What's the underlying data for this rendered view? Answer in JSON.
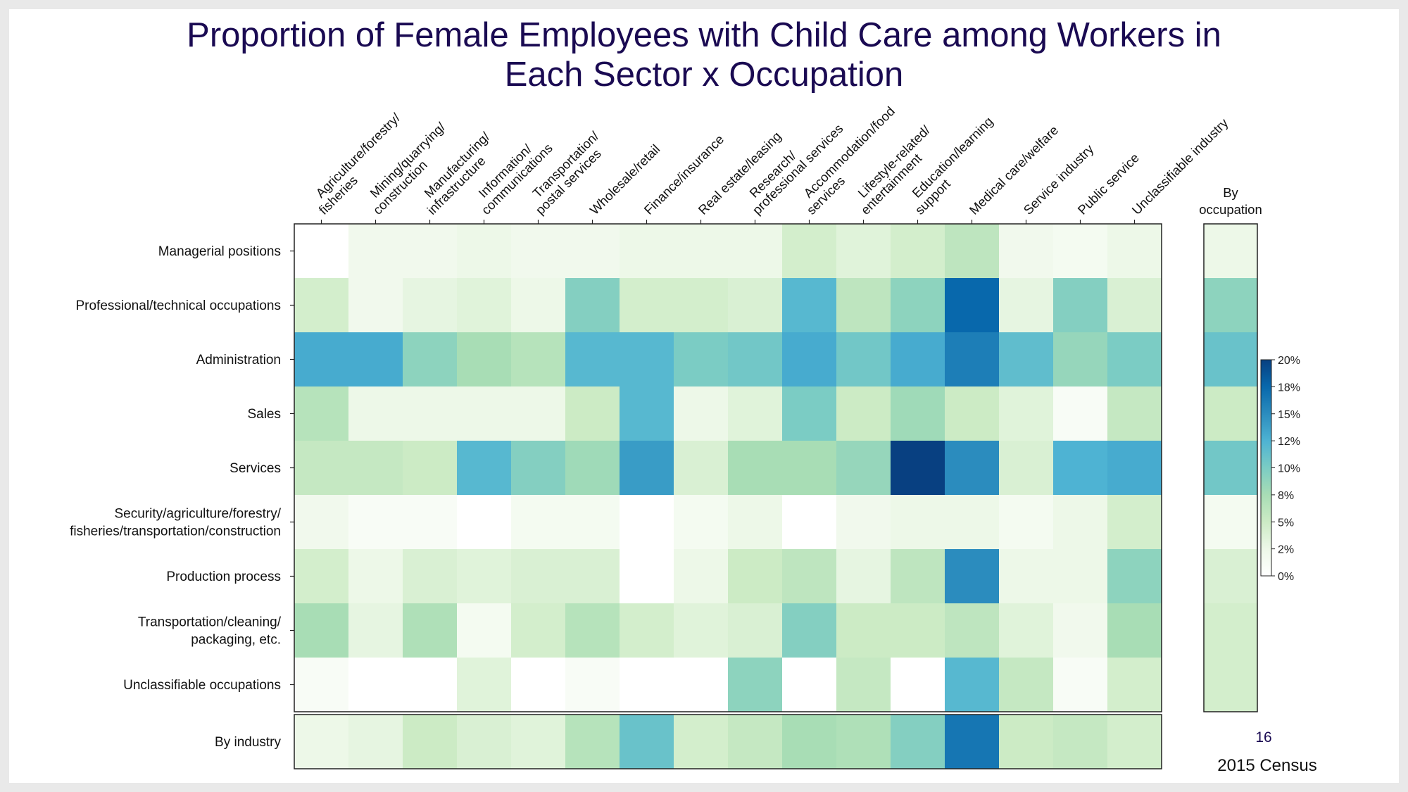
{
  "title_lines": [
    "Proportion of Female Employees with Child Care among Workers in",
    "Each Sector x Occupation"
  ],
  "page_number": "16",
  "footer_text": "2015 Census",
  "chart_data": {
    "type": "heatmap",
    "title": "Proportion of Female Employees with Child Care among Workers in Each Sector x Occupation",
    "columns": [
      [
        "Agriculture/forestry/",
        "fisheries"
      ],
      [
        "Mining/quarrying/",
        "construction"
      ],
      [
        "Manufacturing/",
        "infrastructure"
      ],
      [
        "Information/",
        "communications"
      ],
      [
        "Transportation/",
        "postal services"
      ],
      [
        "Wholesale/retail"
      ],
      [
        "Finance/insurance"
      ],
      [
        "Real estate/leasing"
      ],
      [
        "Research/",
        "professional services"
      ],
      [
        "Accommodation/food",
        "services"
      ],
      [
        "Lifestyle-related/",
        "entertainment"
      ],
      [
        "Education/learning",
        "support"
      ],
      [
        "Medical care/welfare"
      ],
      [
        "Service industry"
      ],
      [
        "Public service"
      ],
      [
        "Unclassifiable industry"
      ]
    ],
    "rows": [
      [
        "Managerial positions"
      ],
      [
        "Professional/technical occupations"
      ],
      [
        "Administration"
      ],
      [
        "Sales"
      ],
      [
        "Services"
      ],
      [
        "Security/agriculture/forestry/",
        "fisheries/transportation/construction"
      ],
      [
        "Production process"
      ],
      [
        "Transportation/cleaning/",
        "packaging, etc."
      ],
      [
        "Unclassifiable occupations"
      ]
    ],
    "values": [
      [
        0.0,
        2.0,
        2.0,
        2.5,
        2.0,
        2.0,
        2.5,
        2.5,
        2.5,
        4.5,
        3.5,
        4.5,
        6.0,
        2.0,
        1.5,
        2.5
      ],
      [
        4.5,
        2.0,
        3.0,
        3.5,
        2.5,
        9.5,
        4.5,
        4.5,
        4.0,
        12.0,
        6.0,
        9.0,
        17.5,
        3.0,
        9.5,
        4.0
      ],
      [
        13.0,
        13.0,
        9.0,
        7.5,
        6.5,
        12.0,
        12.0,
        10.0,
        10.5,
        13.0,
        10.5,
        13.0,
        16.0,
        11.5,
        8.5,
        10.0
      ],
      [
        6.5,
        2.5,
        2.5,
        2.5,
        2.5,
        5.0,
        12.0,
        2.5,
        3.5,
        10.0,
        5.0,
        8.0,
        5.0,
        3.5,
        1.0,
        5.5
      ],
      [
        5.5,
        5.5,
        5.0,
        12.0,
        9.5,
        8.0,
        14.0,
        4.0,
        7.5,
        7.5,
        8.5,
        20.0,
        15.0,
        4.0,
        12.5,
        13.0
      ],
      [
        2.0,
        1.0,
        1.0,
        0.0,
        1.5,
        1.5,
        0.0,
        1.5,
        2.5,
        0.0,
        2.0,
        2.5,
        2.5,
        1.5,
        2.5,
        4.5
      ],
      [
        4.5,
        2.5,
        4.0,
        3.5,
        4.0,
        4.0,
        0.0,
        2.5,
        5.0,
        6.0,
        3.0,
        6.0,
        15.0,
        2.5,
        2.5,
        9.0
      ],
      [
        7.5,
        3.0,
        7.0,
        1.5,
        4.5,
        6.5,
        4.5,
        3.5,
        4.0,
        9.5,
        5.0,
        5.0,
        6.0,
        3.5,
        2.0,
        7.5
      ],
      [
        1.0,
        0.0,
        0.0,
        3.5,
        0.0,
        1.0,
        0.0,
        0.0,
        9.0,
        0.0,
        5.5,
        0.0,
        12.0,
        5.5,
        1.0,
        4.5
      ]
    ],
    "by_industry": {
      "label": "By industry",
      "values": [
        2.5,
        3.0,
        5.0,
        4.0,
        3.5,
        6.5,
        11.0,
        4.5,
        5.5,
        7.5,
        7.0,
        9.5,
        16.5,
        5.0,
        5.5,
        4.5
      ]
    },
    "by_occupation": {
      "label": "By occupation",
      "values": [
        2.5,
        9.0,
        11.0,
        5.0,
        10.5,
        1.5,
        4.0,
        4.5,
        4.5
      ]
    },
    "colorbar": {
      "min": 0,
      "max": 20,
      "tick_labels": [
        "20%",
        "18%",
        "15%",
        "12%",
        "10%",
        "8%",
        "5%",
        "2%",
        "0%"
      ],
      "colormap": [
        "#ffffff",
        "#edf8e8",
        "#ccebc5",
        "#a8ddb5",
        "#7bccc4",
        "#4eb3d3",
        "#2b8cbe",
        "#0868ac",
        "#084081"
      ]
    }
  }
}
